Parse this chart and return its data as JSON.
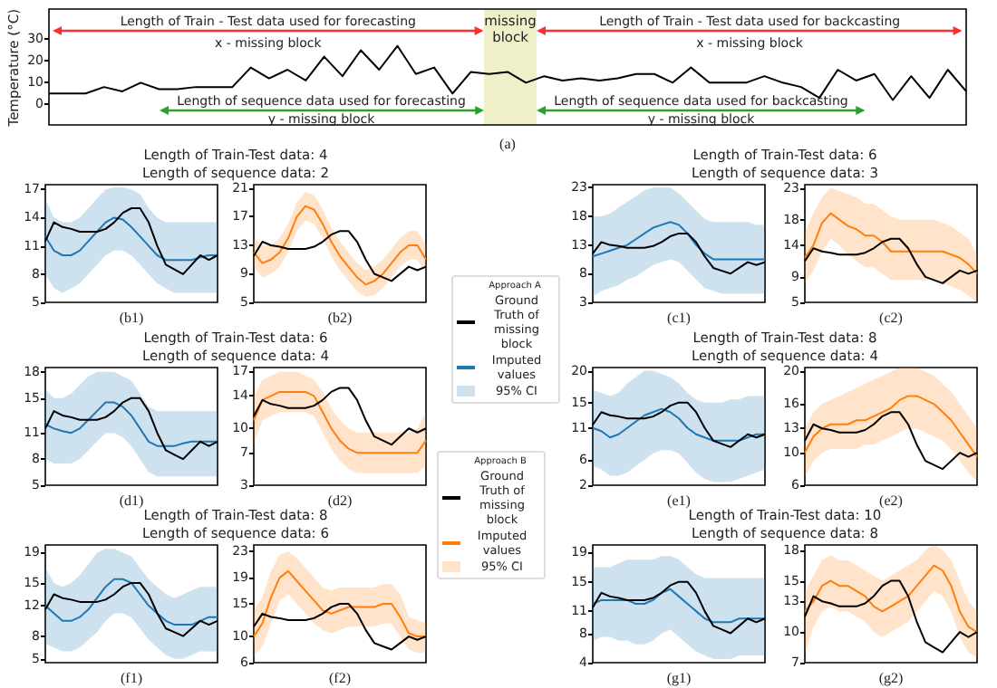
{
  "chart_data": [
    {
      "type": "line",
      "ylabel": "Temperature (°C)",
      "categories": [
        null,
        null,
        null,
        null,
        null,
        null,
        null,
        null,
        null,
        null,
        null,
        null,
        null,
        null,
        null,
        null,
        null,
        null,
        null,
        null,
        null,
        null,
        null,
        null,
        null,
        null,
        null,
        null,
        null,
        null,
        null,
        null,
        null,
        null,
        null,
        null,
        null,
        null,
        null,
        null,
        null,
        null,
        null,
        null,
        null,
        null,
        null,
        null,
        null,
        null,
        null
      ],
      "ylim": [
        -9.5,
        44
      ],
      "yticks": [
        0,
        10,
        20,
        30
      ],
      "tick_labels": "y",
      "series": [
        {
          "color": "#000000",
          "values": [
            5,
            5,
            5,
            8,
            6,
            10,
            7,
            7,
            8,
            8,
            8,
            17,
            12,
            16,
            11,
            22,
            13,
            25,
            16,
            27,
            14,
            17,
            5,
            15,
            14,
            15,
            10,
            13,
            11,
            12,
            11,
            12,
            14,
            14,
            10,
            17,
            10,
            10,
            10,
            13,
            10,
            8,
            3,
            16,
            11,
            14,
            2,
            13,
            3,
            16,
            6
          ]
        }
      ],
      "annotations": [
        "Length of Train - Test data used for forecasting",
        "x - missing block",
        "Length of Train - Test data used for backcasting",
        "x - missing block",
        "Length of sequence data used for forecasting",
        "y - missing block",
        "Length of sequence data used for backcasting",
        "y - missing block",
        "missing block",
        "(a)"
      ]
    },
    {
      "type": "line",
      "title": "Length of Train-Test data: 4",
      "subtitle": "Length of sequence data: 2",
      "categories": [
        null,
        null,
        null,
        null,
        null,
        null,
        null,
        null,
        null,
        null,
        null,
        null,
        null,
        null,
        null,
        null,
        null,
        null,
        null,
        null,
        null
      ],
      "ylim": [
        5,
        17.5
      ],
      "yticks": [
        5,
        8,
        11,
        14,
        17
      ],
      "tick_labels": "y",
      "annotations": [
        "(b1)"
      ],
      "series": [
        {
          "color": "#000000",
          "values": [
            11.5,
            13.5,
            13,
            12.8,
            12.5,
            12.5,
            12.5,
            12.8,
            13.5,
            14.5,
            15,
            15,
            13.5,
            11,
            9,
            8.5,
            8,
            9,
            10,
            9.5,
            10
          ]
        },
        {
          "color": "#1f77b4",
          "values": [
            12,
            10.5,
            10,
            10,
            10.5,
            11.5,
            12.5,
            13.5,
            14,
            13.8,
            13,
            12,
            11,
            10,
            9.5,
            9.5,
            9.5,
            9.5,
            9.8,
            10,
            10
          ],
          "lower": [
            8,
            6.5,
            6,
            6.5,
            7,
            8,
            9,
            10,
            10.5,
            10.5,
            10,
            9,
            8,
            7,
            6.5,
            6,
            6,
            6,
            6,
            6,
            6
          ],
          "upper": [
            16,
            14,
            13.5,
            13.5,
            14,
            15,
            16,
            17,
            17.2,
            17.2,
            17,
            16.5,
            15,
            14,
            13.5,
            13.5,
            13.5,
            13.5,
            13.5,
            13.5,
            13.5
          ]
        }
      ]
    },
    {
      "type": "line",
      "categories": [
        null,
        null,
        null,
        null,
        null,
        null,
        null,
        null,
        null,
        null,
        null,
        null,
        null,
        null,
        null,
        null,
        null,
        null,
        null,
        null,
        null
      ],
      "ylim": [
        5,
        21.5
      ],
      "yticks": [
        5,
        9,
        13,
        17,
        21
      ],
      "tick_labels": "y",
      "annotations": [
        "(b2)"
      ],
      "series": [
        {
          "color": "#000000",
          "values": [
            11.5,
            13.5,
            13,
            12.8,
            12.5,
            12.5,
            12.5,
            12.8,
            13.5,
            14.5,
            15,
            15,
            13.5,
            11,
            9,
            8.5,
            8,
            9,
            10,
            9.5,
            10
          ]
        },
        {
          "color": "#ff7f0e",
          "values": [
            12,
            10.5,
            11,
            12,
            14,
            17,
            18.5,
            18,
            16,
            13.5,
            11.5,
            10,
            8.5,
            7.5,
            8,
            9,
            10.5,
            12,
            13,
            13,
            11
          ],
          "lower": [
            10,
            8.5,
            9,
            10,
            12,
            15,
            16.5,
            16,
            14,
            11.5,
            9.5,
            8,
            6.5,
            5.8,
            6,
            7,
            8.5,
            10,
            11,
            11,
            9
          ],
          "upper": [
            14,
            13,
            13,
            14,
            16,
            19,
            20.5,
            20,
            18,
            15.5,
            13.5,
            12,
            10.5,
            9.5,
            10,
            11,
            12.5,
            14,
            15,
            15,
            13
          ]
        }
      ]
    },
    {
      "type": "line",
      "title": "Length of Train-Test data: 6",
      "subtitle": "Length of sequence data: 3",
      "categories": [
        null,
        null,
        null,
        null,
        null,
        null,
        null,
        null,
        null,
        null,
        null,
        null,
        null,
        null,
        null,
        null,
        null,
        null,
        null,
        null,
        null
      ],
      "ylim": [
        3,
        23.5
      ],
      "yticks": [
        3,
        8,
        13,
        18,
        23
      ],
      "tick_labels": "y",
      "annotations": [
        "(c1)",
        "95% CI"
      ],
      "legend": "left",
      "legend_title": "Approach A",
      "series": [
        {
          "name": "Ground Truth of missing block",
          "color": "#000000",
          "values": [
            11.5,
            13.5,
            13,
            12.8,
            12.5,
            12.5,
            12.5,
            12.8,
            13.5,
            14.5,
            15,
            15,
            13.5,
            11,
            9,
            8.5,
            8,
            9,
            10,
            9.5,
            10
          ]
        },
        {
          "name": "Imputed values",
          "color": "#1f77b4",
          "values": [
            11,
            11.5,
            12,
            12.5,
            13,
            14,
            15,
            16,
            16.5,
            17,
            16.5,
            15,
            13,
            11.5,
            10.5,
            10.5,
            10.5,
            10.5,
            10.5,
            10.5,
            10.5
          ],
          "lower": [
            4,
            5,
            5.5,
            6,
            7,
            7.5,
            8.5,
            9.5,
            10,
            10.5,
            10,
            8.5,
            7,
            5.5,
            5,
            4.5,
            4.5,
            4.5,
            4.5,
            4.5,
            4.5
          ],
          "upper": [
            18,
            18,
            18.5,
            19.5,
            20.5,
            21.5,
            22.5,
            23,
            23,
            23,
            22,
            20.5,
            19,
            17.5,
            17,
            17,
            17,
            17,
            17,
            16.5,
            16.5
          ]
        }
      ]
    },
    {
      "type": "line",
      "categories": [
        null,
        null,
        null,
        null,
        null,
        null,
        null,
        null,
        null,
        null,
        null,
        null,
        null,
        null,
        null,
        null,
        null,
        null,
        null,
        null,
        null
      ],
      "ylim": [
        5,
        23.5
      ],
      "yticks": [
        5,
        9,
        14,
        18,
        23
      ],
      "tick_labels": "y",
      "annotations": [
        "(c2)"
      ],
      "series": [
        {
          "color": "#000000",
          "values": [
            11.5,
            13.5,
            13,
            12.8,
            12.5,
            12.5,
            12.5,
            12.8,
            13.5,
            14.5,
            15,
            15,
            13.5,
            11,
            9,
            8.5,
            8,
            9,
            10,
            9.5,
            10
          ]
        },
        {
          "color": "#ff7f0e",
          "values": [
            12,
            14,
            17.5,
            19,
            18,
            17,
            16.5,
            15.5,
            15.5,
            14.5,
            13,
            13,
            13,
            13,
            13,
            13,
            13,
            12.5,
            12,
            11,
            9.5
          ],
          "lower": [
            8,
            10,
            13,
            15,
            14,
            12.5,
            11.5,
            10.5,
            10.5,
            9.5,
            8.5,
            8.5,
            8.5,
            8.5,
            8.5,
            8.5,
            8,
            7.5,
            7,
            6,
            5
          ],
          "upper": [
            16,
            19,
            21.5,
            23,
            22.5,
            22,
            21.5,
            20.5,
            20.5,
            19.5,
            18.5,
            18,
            18,
            18,
            18,
            18,
            17.5,
            17,
            16,
            15,
            12.5
          ]
        }
      ]
    },
    {
      "type": "line",
      "title": "Length of Train-Test data: 6",
      "subtitle": "Length of sequence data: 4",
      "categories": [
        null,
        null,
        null,
        null,
        null,
        null,
        null,
        null,
        null,
        null,
        null,
        null,
        null,
        null,
        null,
        null,
        null,
        null,
        null,
        null,
        null
      ],
      "ylim": [
        5,
        18.5
      ],
      "yticks": [
        5,
        8,
        11,
        15,
        18
      ],
      "tick_labels": "y",
      "annotations": [
        "(d1)"
      ],
      "series": [
        {
          "color": "#000000",
          "values": [
            11.5,
            13.5,
            13,
            12.8,
            12.5,
            12.5,
            12.5,
            12.8,
            13.5,
            14.5,
            15,
            15,
            13.5,
            11,
            9,
            8.5,
            8,
            9,
            10,
            9.5,
            10
          ]
        },
        {
          "color": "#1f77b4",
          "values": [
            12,
            11.5,
            11.2,
            11,
            11.5,
            12.5,
            13.5,
            14.5,
            14.5,
            14,
            13,
            11.5,
            10,
            9.5,
            9.5,
            9.5,
            9.8,
            10,
            10,
            10,
            10
          ],
          "lower": [
            8,
            7.5,
            7.5,
            7.5,
            8,
            9,
            10,
            11,
            11,
            10.5,
            9.5,
            8,
            6.5,
            6,
            6,
            6,
            6,
            6,
            6,
            6,
            6
          ],
          "upper": [
            16,
            15,
            15,
            15.5,
            16.5,
            17.5,
            18,
            18,
            18,
            17.5,
            17,
            15.5,
            14,
            13.5,
            13.5,
            13.5,
            13.5,
            13.5,
            13.5,
            13.5,
            13.5
          ]
        }
      ]
    },
    {
      "type": "line",
      "categories": [
        null,
        null,
        null,
        null,
        null,
        null,
        null,
        null,
        null,
        null,
        null,
        null,
        null,
        null,
        null,
        null,
        null,
        null,
        null,
        null,
        null
      ],
      "ylim": [
        3,
        17.5
      ],
      "yticks": [
        3,
        7,
        10,
        14,
        17
      ],
      "tick_labels": "y",
      "annotations": [
        "(d2)"
      ],
      "series": [
        {
          "color": "#000000",
          "values": [
            11.5,
            13.5,
            13,
            12.8,
            12.5,
            12.5,
            12.5,
            12.8,
            13.5,
            14.5,
            15,
            15,
            13.5,
            11,
            9,
            8.5,
            8,
            9,
            10,
            9.5,
            10
          ]
        },
        {
          "color": "#ff7f0e",
          "values": [
            11,
            13.5,
            14,
            14.5,
            14.5,
            14.5,
            14.5,
            14,
            12,
            10,
            8.5,
            7.5,
            7,
            7,
            7,
            7,
            7,
            7,
            7,
            7,
            8.5
          ],
          "lower": [
            8,
            11,
            11.5,
            12,
            12,
            12,
            12,
            11.5,
            9.5,
            7.5,
            6,
            5,
            4.5,
            4.5,
            4.5,
            4.5,
            4.5,
            4.5,
            4.5,
            4.5,
            5.5
          ],
          "upper": [
            14,
            16,
            16.5,
            17,
            17,
            17,
            16.5,
            16,
            14.5,
            12.5,
            11,
            10,
            9.5,
            9.5,
            9.5,
            9.5,
            9.5,
            9.5,
            9.5,
            10,
            12
          ]
        }
      ]
    },
    {
      "type": "line",
      "title": "Length of Train-Test data: 8",
      "subtitle": "Length of sequence data: 4",
      "categories": [
        null,
        null,
        null,
        null,
        null,
        null,
        null,
        null,
        null,
        null,
        null,
        null,
        null,
        null,
        null,
        null,
        null,
        null,
        null,
        null,
        null
      ],
      "ylim": [
        2,
        20.5
      ],
      "yticks": [
        2,
        6,
        11,
        15,
        20
      ],
      "tick_labels": "y",
      "annotations": [
        "(e1)"
      ],
      "series": [
        {
          "color": "#000000",
          "values": [
            11.5,
            13.5,
            13,
            12.8,
            12.5,
            12.5,
            12.5,
            12.8,
            13.5,
            14.5,
            15,
            15,
            13.5,
            11,
            9,
            8.5,
            8,
            9,
            10,
            9.5,
            10
          ]
        },
        {
          "color": "#1f77b4",
          "values": [
            11,
            10.5,
            9.5,
            10,
            11,
            12,
            13,
            13.5,
            14,
            13.5,
            12.5,
            11,
            10,
            9.5,
            9,
            9,
            9,
            9,
            9.5,
            10,
            10
          ],
          "lower": [
            5,
            4.5,
            3.5,
            3.5,
            4,
            5,
            6,
            7,
            7.5,
            7.5,
            7,
            5.5,
            4,
            3,
            2.5,
            2.5,
            2.5,
            3,
            3.5,
            4,
            4.5
          ],
          "upper": [
            17,
            16.5,
            16,
            16.5,
            18,
            19,
            20,
            20,
            19.5,
            19,
            18,
            16.5,
            15.5,
            15,
            15,
            15,
            15.5,
            15.5,
            16,
            16,
            16
          ]
        }
      ]
    },
    {
      "type": "line",
      "categories": [
        null,
        null,
        null,
        null,
        null,
        null,
        null,
        null,
        null,
        null,
        null,
        null,
        null,
        null,
        null,
        null,
        null,
        null,
        null,
        null,
        null
      ],
      "ylim": [
        6,
        20.5
      ],
      "yticks": [
        6,
        10,
        13,
        16,
        20
      ],
      "tick_labels": "y",
      "annotations": [
        "(e2)"
      ],
      "series": [
        {
          "color": "#000000",
          "values": [
            11.5,
            13.5,
            13,
            12.8,
            12.5,
            12.5,
            12.5,
            12.8,
            13.5,
            14.5,
            15,
            15,
            13.5,
            11,
            9,
            8.5,
            8,
            9,
            10,
            9.5,
            10
          ]
        },
        {
          "color": "#ff7f0e",
          "values": [
            10,
            12,
            13,
            13.5,
            13.5,
            13.5,
            14,
            14,
            14.5,
            15,
            15.5,
            16.5,
            17,
            17,
            16.5,
            16,
            15,
            14,
            12.5,
            11,
            9.5
          ],
          "lower": [
            7,
            9,
            10,
            10.5,
            10.5,
            10.5,
            10.5,
            11,
            11,
            11.5,
            12,
            12.5,
            13,
            13,
            12.5,
            12,
            11.5,
            10.5,
            9,
            7.5,
            6.5
          ],
          "upper": [
            13,
            15,
            16,
            16.5,
            17,
            17.5,
            18,
            18.5,
            19,
            19.5,
            20,
            20.5,
            20.5,
            20.5,
            20,
            19.5,
            18.5,
            17.5,
            16,
            14.5,
            13
          ]
        }
      ]
    },
    {
      "type": "line",
      "title": "Length of Train-Test data: 8",
      "subtitle": "Length of sequence data: 6",
      "categories": [
        null,
        null,
        null,
        null,
        null,
        null,
        null,
        null,
        null,
        null,
        null,
        null,
        null,
        null,
        null,
        null,
        null,
        null,
        null,
        null,
        null
      ],
      "ylim": [
        4.5,
        20
      ],
      "yticks": [
        5,
        8,
        12,
        15,
        19
      ],
      "tick_labels": "y",
      "annotations": [
        "(f1)"
      ],
      "series": [
        {
          "color": "#000000",
          "values": [
            11.5,
            13.5,
            13,
            12.8,
            12.5,
            12.5,
            12.5,
            12.8,
            13.5,
            14.5,
            15,
            15,
            13.5,
            11,
            9,
            8.5,
            8,
            9,
            10,
            9.5,
            10
          ]
        },
        {
          "color": "#1f77b4",
          "values": [
            12,
            11,
            10,
            10,
            10.5,
            11.5,
            13,
            14.5,
            15.5,
            15.5,
            15,
            13.5,
            12,
            11,
            10,
            9.5,
            9.5,
            9.5,
            10,
            10.5,
            10.5
          ],
          "lower": [
            7,
            6.5,
            6,
            6,
            6.5,
            7.5,
            8.5,
            10,
            11,
            11,
            10.5,
            9,
            7.5,
            6.5,
            5.5,
            5,
            5,
            5.5,
            6,
            6,
            6
          ],
          "upper": [
            17,
            15,
            14.5,
            15,
            16,
            17.5,
            19,
            19.5,
            19.5,
            19,
            18.5,
            17,
            15.5,
            14.5,
            13.5,
            13,
            13.5,
            14,
            14.5,
            14.5,
            14.5
          ]
        }
      ]
    },
    {
      "type": "line",
      "categories": [
        null,
        null,
        null,
        null,
        null,
        null,
        null,
        null,
        null,
        null,
        null,
        null,
        null,
        null,
        null,
        null,
        null,
        null,
        null,
        null,
        null
      ],
      "ylim": [
        6,
        24
      ],
      "yticks": [
        6,
        10,
        15,
        19,
        23
      ],
      "tick_labels": "y",
      "annotations": [
        "(f2)",
        "95% CI"
      ],
      "legend": "top right",
      "legend_title": "Approach B",
      "series": [
        {
          "name": "Ground Truth of missing block",
          "color": "#000000",
          "values": [
            11.5,
            13.5,
            13,
            12.8,
            12.5,
            12.5,
            12.5,
            12.8,
            13.5,
            14.5,
            15,
            15,
            13.5,
            11,
            9,
            8.5,
            8,
            9,
            10,
            9.5,
            10
          ]
        },
        {
          "name": "Imputed values",
          "color": "#ff7f0e",
          "values": [
            10,
            12,
            16,
            19,
            20,
            18.5,
            17,
            15.5,
            14,
            13.5,
            14,
            14.5,
            14.5,
            14.5,
            14.5,
            15,
            15,
            13,
            10.5,
            10,
            10
          ],
          "lower": [
            7,
            8.5,
            12,
            15.5,
            16.5,
            15,
            13.5,
            12,
            11,
            10.5,
            11,
            11.5,
            11.5,
            11.5,
            11.5,
            12,
            12,
            10,
            8,
            7.5,
            7.5
          ],
          "upper": [
            14,
            16,
            20,
            22.5,
            23,
            22,
            20.5,
            19,
            17.5,
            17,
            17.5,
            17.5,
            17.5,
            17.5,
            17.5,
            18,
            18,
            16.5,
            13,
            12.5,
            12
          ]
        }
      ]
    },
    {
      "type": "line",
      "title": "Length of Train-Test data: 10",
      "subtitle": "Length of sequence data: 8",
      "categories": [
        null,
        null,
        null,
        null,
        null,
        null,
        null,
        null,
        null,
        null,
        null,
        null,
        null,
        null,
        null,
        null,
        null,
        null,
        null,
        null,
        null
      ],
      "ylim": [
        4,
        20
      ],
      "yticks": [
        4,
        8,
        11,
        15,
        19
      ],
      "tick_labels": "y",
      "annotations": [
        "(g1)"
      ],
      "series": [
        {
          "color": "#000000",
          "values": [
            11.5,
            13.5,
            13,
            12.8,
            12.5,
            12.5,
            12.5,
            12.8,
            13.5,
            14.5,
            15,
            15,
            13.5,
            11,
            9,
            8.5,
            8,
            9,
            10,
            9.5,
            10
          ]
        },
        {
          "color": "#1f77b4",
          "values": [
            12,
            12.5,
            12.5,
            12.5,
            12.5,
            12,
            12,
            12.5,
            13.5,
            14,
            13,
            12,
            11,
            10,
            9.5,
            9.5,
            9.5,
            10,
            10,
            10,
            10
          ],
          "lower": [
            7,
            7.5,
            7.5,
            7,
            7,
            6.5,
            6.5,
            7,
            8,
            8.5,
            7.5,
            6.5,
            5.5,
            5,
            4.5,
            4.5,
            4.5,
            5,
            5,
            5,
            5
          ],
          "upper": [
            17,
            17,
            17,
            17.5,
            18,
            18,
            18,
            18,
            18.5,
            18.5,
            18,
            17,
            16,
            15.5,
            15.5,
            15.5,
            15.5,
            15.5,
            15.5,
            15.5,
            15.5
          ]
        }
      ]
    },
    {
      "type": "line",
      "categories": [
        null,
        null,
        null,
        null,
        null,
        null,
        null,
        null,
        null,
        null,
        null,
        null,
        null,
        null,
        null,
        null,
        null,
        null,
        null,
        null,
        null
      ],
      "ylim": [
        7,
        18.5
      ],
      "yticks": [
        7,
        10,
        13,
        15,
        18
      ],
      "tick_labels": "y",
      "annotations": [
        "(g2)"
      ],
      "series": [
        {
          "color": "#000000",
          "values": [
            11.5,
            13.5,
            13,
            12.8,
            12.5,
            12.5,
            12.5,
            12.8,
            13.5,
            14.5,
            15,
            15,
            13.5,
            11,
            9,
            8.5,
            8,
            9,
            10,
            9.5,
            10
          ]
        },
        {
          "color": "#ff7f0e",
          "values": [
            12,
            13,
            14.5,
            15,
            14.5,
            14.5,
            14,
            13.5,
            12.5,
            12,
            12.5,
            13,
            13.5,
            14.5,
            15.5,
            16.5,
            16,
            14.5,
            12,
            10.5,
            10
          ],
          "lower": [
            8,
            10.5,
            12,
            12.5,
            12,
            12,
            11.5,
            11,
            10,
            9.5,
            10,
            10.5,
            11,
            12,
            13,
            14,
            13.5,
            12,
            9.5,
            8,
            7.5
          ],
          "upper": [
            14,
            15.5,
            17,
            17.5,
            17,
            17,
            16.5,
            16,
            15.5,
            15,
            15.5,
            16,
            16.5,
            17,
            18,
            18.5,
            18,
            17,
            15,
            13,
            12
          ]
        }
      ]
    }
  ]
}
